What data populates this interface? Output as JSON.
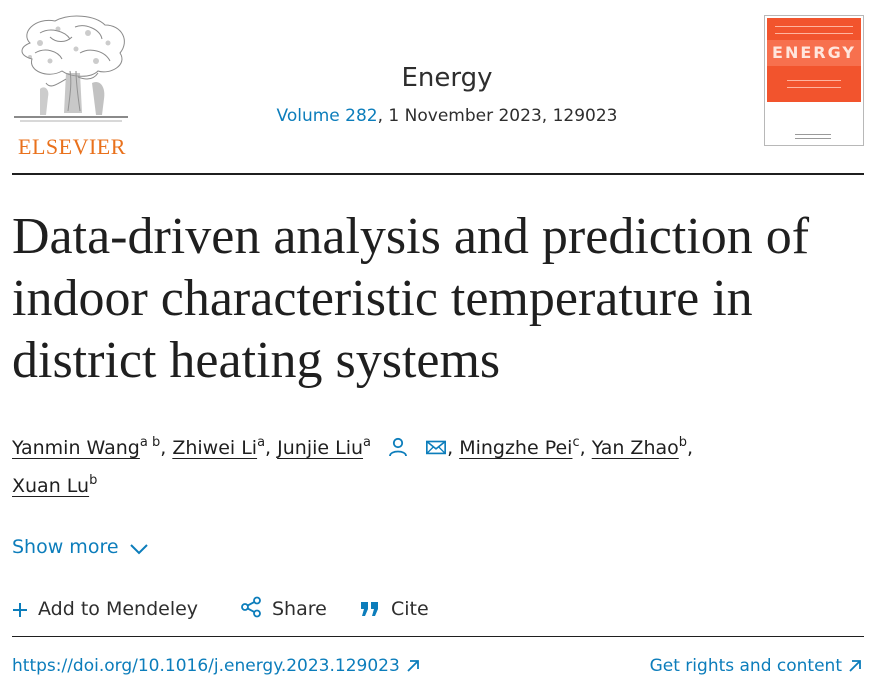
{
  "publisher": {
    "name": "ELSEVIER",
    "brand_color": "#e9711c"
  },
  "journal": {
    "name": "Energy",
    "volume_link": "Volume 282",
    "issue_date": ", 1 November 2023, 129023"
  },
  "cover": {
    "title": "ENERGY",
    "color": "#f2542d"
  },
  "article": {
    "title": "Data-driven analysis and prediction of indoor characteristic temperature in district heating systems"
  },
  "authors": [
    {
      "name": "Yanmin Wang",
      "affil": "a b",
      "sep": ", "
    },
    {
      "name": "Zhiwei Li",
      "affil": "a",
      "sep": ", "
    },
    {
      "name": "Junjie Liu",
      "affil": "a",
      "sep": ""
    },
    {
      "name": "Mingzhe Pei",
      "affil": "c",
      "sep": ", "
    },
    {
      "name": "Yan Zhao",
      "affil": "b",
      "sep": ","
    },
    {
      "name": "Xuan Lu",
      "affil": "b",
      "sep": ""
    }
  ],
  "author_icons": [
    "person-icon",
    "envelope-icon"
  ],
  "ui": {
    "show_more": "Show more",
    "add_to_mendeley": "Add to Mendeley",
    "share": "Share",
    "cite": "Cite",
    "doi": "https://doi.org/10.1016/j.energy.2023.129023",
    "rights": "Get rights and content"
  },
  "colors": {
    "link": "#0c7dbb",
    "text": "#1f1f1f"
  }
}
